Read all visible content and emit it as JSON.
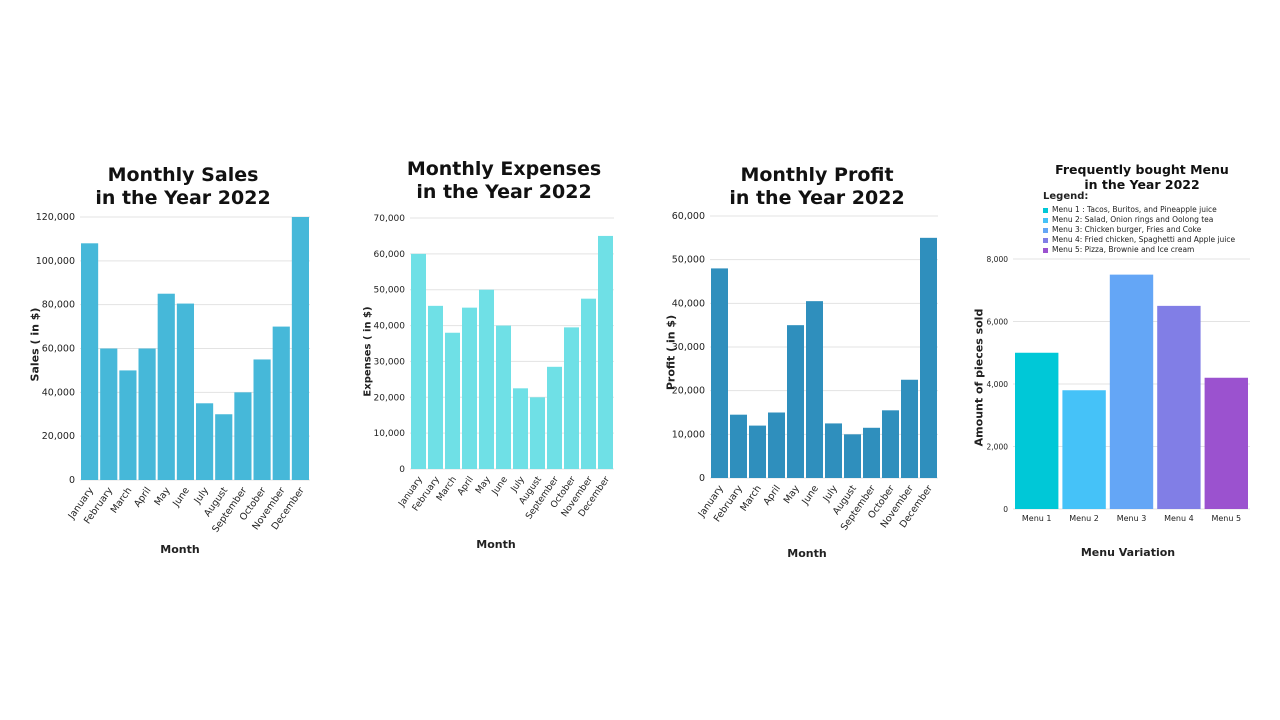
{
  "chart_data": [
    {
      "type": "bar",
      "title_line1": "Monthly Sales",
      "title_line2": "in the Year 2022",
      "xlabel": "Month",
      "ylabel": "Sales ( in $)",
      "categories": [
        "January",
        "February",
        "March",
        "April",
        "May",
        "June",
        "July",
        "August",
        "September",
        "October",
        "November",
        "December"
      ],
      "values": [
        108000,
        60000,
        50000,
        60000,
        85000,
        80500,
        35000,
        30000,
        40000,
        55000,
        70000,
        120000
      ],
      "ylim": [
        0,
        120000
      ],
      "yticks": [
        0,
        20000,
        40000,
        60000,
        80000,
        100000,
        120000
      ],
      "ytick_labels": [
        "0",
        "20,000",
        "40,000",
        "60,000",
        "80,000",
        "100,000",
        "120,000"
      ],
      "color": "#46b8d9",
      "grid": true
    },
    {
      "type": "bar",
      "title_line1": "Monthly Expenses",
      "title_line2": "in the Year 2022",
      "xlabel": "Month",
      "ylabel": "Expenses ( in $)",
      "categories": [
        "January",
        "February",
        "March",
        "April",
        "May",
        "June",
        "July",
        "August",
        "September",
        "October",
        "November",
        "December"
      ],
      "values": [
        60000,
        45500,
        38000,
        45000,
        50000,
        40000,
        22500,
        20000,
        28500,
        39500,
        47500,
        65000
      ],
      "ylim": [
        0,
        70000
      ],
      "yticks": [
        0,
        10000,
        20000,
        30000,
        40000,
        50000,
        60000,
        70000
      ],
      "ytick_labels": [
        "0",
        "10,000",
        "20,000",
        "30,000",
        "40,000",
        "50,000",
        "60,000",
        "70,000"
      ],
      "color": "#6fe0e6",
      "grid": true
    },
    {
      "type": "bar",
      "title_line1": "Monthly Profit",
      "title_line2": "in the Year 2022",
      "xlabel": "Month",
      "ylabel": "Profit ( in $)",
      "categories": [
        "January",
        "February",
        "March",
        "April",
        "May",
        "June",
        "July",
        "August",
        "September",
        "October",
        "November",
        "December"
      ],
      "values": [
        48000,
        14500,
        12000,
        15000,
        35000,
        40500,
        12500,
        10000,
        11500,
        15500,
        22500,
        55000
      ],
      "ylim": [
        0,
        60000
      ],
      "yticks": [
        0,
        10000,
        20000,
        30000,
        40000,
        50000,
        60000
      ],
      "ytick_labels": [
        "0",
        "10,000",
        "20,000",
        "30,000",
        "40,000",
        "50,000",
        "60,000"
      ],
      "color": "#2f8fbd",
      "grid": true
    },
    {
      "type": "bar",
      "title_line1": "Frequently bought Menu",
      "title_line2": "in the Year 2022",
      "xlabel": "Menu Variation",
      "ylabel": "Amount of pieces sold",
      "categories": [
        "Menu 1",
        "Menu 2",
        "Menu 3",
        "Menu 4",
        "Menu 5"
      ],
      "values": [
        5000,
        3800,
        7500,
        6500,
        4200
      ],
      "colors": [
        "#00c8d7",
        "#45c2f8",
        "#64a6f6",
        "#817ee6",
        "#9b52cf"
      ],
      "ylim": [
        0,
        8000
      ],
      "yticks": [
        0,
        2000,
        4000,
        6000,
        8000
      ],
      "ytick_labels": [
        "0",
        "2,000",
        "4,000",
        "6,000",
        "8,000"
      ],
      "grid": true,
      "legend_title": "Legend:",
      "legend": [
        "Menu 1 : Tacos, Buritos, and Pineapple juice",
        "Menu 2: Salad, Onion rings and Oolong tea",
        "Menu 3: Chicken burger, Fries and Coke",
        "Menu 4: Fried chicken, Spaghetti and Apple juice",
        "Menu 5: Pizza, Brownie and Ice cream"
      ],
      "legend_position": "top-left"
    }
  ]
}
